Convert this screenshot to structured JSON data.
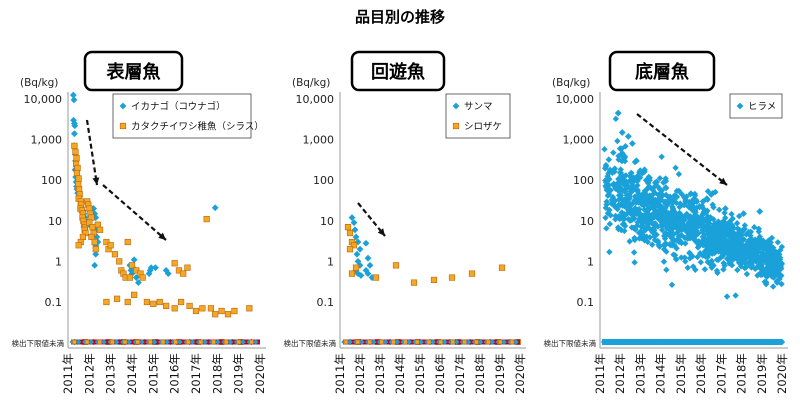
{
  "page_title": "品目別の推移",
  "colors": {
    "blue": "#1BA1D9",
    "orange": "#F5A623",
    "orange_edge": "#B8660B",
    "nd_red": "#C0001A",
    "arrow": "#111111"
  },
  "chart_data": [
    {
      "type": "scatter",
      "panel_title": "表層魚",
      "unit_label": "(Bq/kg)",
      "y_scale": "log",
      "y_ticks": [
        "10,000",
        "1,000",
        "100",
        "10",
        "1",
        "0.1"
      ],
      "nd_label": "検出下限値未満",
      "x_ticks": [
        "2011年",
        "2012年",
        "2013年",
        "2014年",
        "2015年",
        "2016年",
        "2017年",
        "2018年",
        "2019年",
        "2020年"
      ],
      "xlim": [
        2011,
        2020
      ],
      "legend": {
        "position": "top-right"
      },
      "series": [
        {
          "name": "イカナゴ（コウナゴ）",
          "marker": "diamond",
          "color": "#1BA1D9",
          "points": [
            [
              2011.25,
              12500
            ],
            [
              2011.28,
              9500
            ],
            [
              2011.26,
              3000
            ],
            [
              2011.3,
              2500
            ],
            [
              2011.32,
              2200
            ],
            [
              2011.3,
              1400
            ],
            [
              2011.31,
              700
            ],
            [
              2011.34,
              430
            ],
            [
              2011.35,
              300
            ],
            [
              2011.33,
              180
            ],
            [
              2011.36,
              120
            ],
            [
              2011.38,
              90
            ],
            [
              2011.4,
              70
            ],
            [
              2011.42,
              60
            ],
            [
              2011.45,
              48
            ],
            [
              2011.5,
              40
            ],
            [
              2011.55,
              32
            ],
            [
              2011.6,
              25
            ],
            [
              2011.65,
              20
            ],
            [
              2011.7,
              18
            ],
            [
              2011.75,
              15
            ],
            [
              2011.8,
              12
            ],
            [
              2011.85,
              10
            ],
            [
              2011.9,
              9
            ],
            [
              2012.0,
              8
            ],
            [
              2012.2,
              20
            ],
            [
              2012.25,
              15
            ],
            [
              2012.3,
              12
            ],
            [
              2012.35,
              8
            ],
            [
              2012.3,
              6
            ],
            [
              2012.35,
              4
            ],
            [
              2012.4,
              3
            ],
            [
              2012.3,
              2.5
            ],
            [
              2012.3,
              1.5
            ],
            [
              2012.25,
              0.8
            ],
            [
              2013.9,
              0.8
            ],
            [
              2013.95,
              0.6
            ],
            [
              2014.0,
              0.5
            ],
            [
              2014.1,
              1.1
            ],
            [
              2014.05,
              0.7
            ],
            [
              2014.2,
              0.4
            ],
            [
              2014.3,
              0.3
            ],
            [
              2014.8,
              0.5
            ],
            [
              2014.85,
              0.6
            ],
            [
              2014.9,
              0.7
            ],
            [
              2015.1,
              0.7
            ],
            [
              2015.6,
              0.6
            ],
            [
              2015.7,
              0.5
            ],
            [
              2017.9,
              21
            ],
            [
              "ND",
              2011.3
            ],
            [
              "ND",
              2012.2
            ],
            [
              "ND",
              2013.4
            ],
            [
              "ND",
              2014.6
            ],
            [
              "ND",
              2015.8
            ],
            [
              "ND",
              2016.7
            ],
            [
              "ND",
              2017.6
            ],
            [
              "ND",
              2018.7
            ],
            [
              "ND",
              2019.6
            ]
          ]
        },
        {
          "name": "カタクチイワシ稚魚（シラス）",
          "marker": "square",
          "color": "#F5A623",
          "points": [
            [
              2011.3,
              700
            ],
            [
              2011.35,
              500
            ],
            [
              2011.4,
              350
            ],
            [
              2011.38,
              250
            ],
            [
              2011.45,
              200
            ],
            [
              2011.42,
              150
            ],
            [
              2011.5,
              110
            ],
            [
              2011.48,
              80
            ],
            [
              2011.52,
              60
            ],
            [
              2011.55,
              45
            ],
            [
              2011.5,
              35
            ],
            [
              2011.6,
              30
            ],
            [
              2011.62,
              25
            ],
            [
              2011.58,
              20
            ],
            [
              2011.65,
              18
            ],
            [
              2011.7,
              15
            ],
            [
              2011.68,
              12
            ],
            [
              2011.72,
              10
            ],
            [
              2011.75,
              8
            ],
            [
              2011.8,
              7
            ],
            [
              2011.78,
              6
            ],
            [
              2011.82,
              5
            ],
            [
              2011.7,
              4
            ],
            [
              2011.6,
              3
            ],
            [
              2011.5,
              2.5
            ],
            [
              2011.9,
              30
            ],
            [
              2011.95,
              25
            ],
            [
              2012.0,
              20
            ],
            [
              2012.05,
              15
            ],
            [
              2012.1,
              12
            ],
            [
              2012.0,
              9
            ],
            [
              2012.15,
              7
            ],
            [
              2012.2,
              5
            ],
            [
              2012.1,
              4
            ],
            [
              2012.25,
              3
            ],
            [
              2012.3,
              2
            ],
            [
              2012.4,
              8
            ],
            [
              2012.5,
              6
            ],
            [
              2012.8,
              3
            ],
            [
              2012.9,
              2
            ],
            [
              2013.0,
              2.5
            ],
            [
              2013.2,
              1.5
            ],
            [
              2013.4,
              1.0
            ],
            [
              2013.5,
              0.6
            ],
            [
              2013.6,
              0.5
            ],
            [
              2013.7,
              0.4
            ],
            [
              2013.8,
              3
            ],
            [
              2013.9,
              0.4
            ],
            [
              2014.0,
              0.8
            ],
            [
              2014.2,
              0.6
            ],
            [
              2014.4,
              0.5
            ],
            [
              2014.5,
              0.4
            ],
            [
              2012.8,
              0.1
            ],
            [
              2013.3,
              0.12
            ],
            [
              2013.8,
              0.1
            ],
            [
              2014.1,
              0.15
            ],
            [
              2014.7,
              0.1
            ],
            [
              2015.0,
              0.09
            ],
            [
              2015.3,
              0.1
            ],
            [
              2015.6,
              0.08
            ],
            [
              2016.0,
              0.07
            ],
            [
              2016.3,
              0.1
            ],
            [
              2016.7,
              0.08
            ],
            [
              2017.0,
              0.06
            ],
            [
              2017.3,
              0.07
            ],
            [
              2017.7,
              0.07
            ],
            [
              2018.2,
              0.06
            ],
            [
              2018.8,
              0.06
            ],
            [
              2019.5,
              0.07
            ],
            [
              2016.0,
              0.9
            ],
            [
              2016.2,
              0.6
            ],
            [
              2016.4,
              0.5
            ],
            [
              2016.6,
              0.7
            ],
            [
              2017.5,
              11
            ],
            [
              2017.9,
              0.05
            ],
            [
              2018.5,
              0.05
            ],
            [
              "ND",
              2011.8
            ],
            [
              "ND",
              2012.9
            ],
            [
              "ND",
              2013.6
            ],
            [
              "ND",
              2014.2
            ],
            [
              "ND",
              2015.1
            ],
            [
              "ND",
              2016.2
            ],
            [
              "ND",
              2017.1
            ],
            [
              "ND",
              2018.2
            ],
            [
              "ND",
              2019.1
            ]
          ]
        }
      ]
    },
    {
      "type": "scatter",
      "panel_title": "回遊魚",
      "unit_label": "(Bq/kg)",
      "y_scale": "log",
      "y_ticks": [
        "10,000",
        "1,000",
        "100",
        "10",
        "1",
        "0.1"
      ],
      "nd_label": "検出下限値未満",
      "x_ticks": [
        "2011年",
        "2012年",
        "2013年",
        "2014年",
        "2015年",
        "2016年",
        "2017年",
        "2018年",
        "2019年",
        "2020年"
      ],
      "xlim": [
        2011,
        2020
      ],
      "legend": {
        "position": "top-right"
      },
      "series": [
        {
          "name": "サンマ",
          "marker": "diamond",
          "color": "#1BA1D9",
          "points": [
            [
              2011.6,
              12
            ],
            [
              2011.7,
              9
            ],
            [
              2011.75,
              6
            ],
            [
              2011.8,
              4
            ],
            [
              2011.9,
              3
            ],
            [
              2012.0,
              2
            ],
            [
              2011.85,
              1.5
            ],
            [
              2011.9,
              1.0
            ],
            [
              2012.0,
              0.8
            ],
            [
              2011.8,
              0.6
            ],
            [
              2011.9,
              0.5
            ],
            [
              2012.05,
              0.45
            ],
            [
              2012.3,
              2.8
            ],
            [
              2012.4,
              1.2
            ],
            [
              2012.5,
              0.8
            ],
            [
              2012.3,
              0.6
            ],
            [
              2012.4,
              0.5
            ],
            [
              2012.6,
              0.4
            ],
            [
              "ND",
              2011.5
            ],
            [
              "ND",
              2012.5
            ],
            [
              "ND",
              2013.5
            ],
            [
              "ND",
              2014.5
            ],
            [
              "ND",
              2015.5
            ],
            [
              "ND",
              2016.5
            ],
            [
              "ND",
              2017.5
            ],
            [
              "ND",
              2018.5
            ],
            [
              "ND",
              2019.5
            ]
          ]
        },
        {
          "name": "シロザケ",
          "marker": "square",
          "color": "#F5A623",
          "points": [
            [
              2011.4,
              7
            ],
            [
              2011.5,
              5
            ],
            [
              2011.6,
              3
            ],
            [
              2011.7,
              2.5
            ],
            [
              2011.5,
              2
            ],
            [
              2011.6,
              0.5
            ],
            [
              2011.8,
              0.7
            ],
            [
              2012.8,
              0.4
            ],
            [
              2013.8,
              0.8
            ],
            [
              2014.7,
              0.3
            ],
            [
              2015.7,
              0.35
            ],
            [
              2016.6,
              0.4
            ],
            [
              2017.6,
              0.5
            ],
            [
              2019.1,
              0.7
            ],
            [
              "ND",
              2011.9
            ],
            [
              "ND",
              2012.9
            ],
            [
              "ND",
              2013.9
            ],
            [
              "ND",
              2014.9
            ],
            [
              "ND",
              2015.9
            ],
            [
              "ND",
              2016.9
            ],
            [
              "ND",
              2017.9
            ],
            [
              "ND",
              2018.9
            ],
            [
              "ND",
              2019.9
            ]
          ]
        }
      ]
    },
    {
      "type": "scatter",
      "panel_title": "底層魚",
      "unit_label": "(Bq/kg)",
      "y_scale": "log",
      "y_ticks": [
        "10,000",
        "1,000",
        "100",
        "10",
        "1",
        "0.1"
      ],
      "nd_label": "検出下限値未満",
      "x_ticks": [
        "2011年",
        "2012年",
        "2013年",
        "2014年",
        "2015年",
        "2016年",
        "2017年",
        "2018年",
        "2019年",
        "2020年"
      ],
      "xlim": [
        2011,
        2020
      ],
      "legend": {
        "position": "top-right"
      },
      "series": [
        {
          "name": "ヒラメ",
          "marker": "diamond",
          "color": "#1BA1D9",
          "cloud": {
            "start": 2011.2,
            "end": 2020.0,
            "count": 1300,
            "log_center_start": 1.8,
            "log_center_end": -0.1,
            "log_spread_start": 0.9,
            "log_spread_end": 0.35
          },
          "points": [
            [
              2011.9,
              4500
            ],
            [
              2012.1,
              1500
            ],
            [
              2012.4,
              1200
            ],
            [
              2012.6,
              800
            ],
            [
              2012.0,
              600
            ],
            [
              2012.8,
              300
            ],
            [
              2013.2,
              180
            ],
            [
              2013.8,
              90
            ],
            [
              2016.1,
              30
            ],
            [
              2017.2,
              20
            ],
            [
              2018.1,
              15
            ],
            [
              2018.9,
              17
            ],
            [
              2019.4,
              2.5
            ],
            [
              2019.2,
              0.6
            ],
            [
              2019.8,
              0.5
            ],
            [
              2019.9,
              0.45
            ],
            [
              "ND",
              2011.2
            ],
            [
              "ND",
              2012.0
            ],
            [
              "ND",
              2013.0
            ],
            [
              "ND",
              2014.0
            ],
            [
              "ND",
              2015.0
            ],
            [
              "ND",
              2016.0
            ],
            [
              "ND",
              2017.0
            ],
            [
              "ND",
              2018.0
            ],
            [
              "ND",
              2019.0
            ],
            [
              "ND",
              2020.0
            ]
          ]
        }
      ]
    }
  ]
}
